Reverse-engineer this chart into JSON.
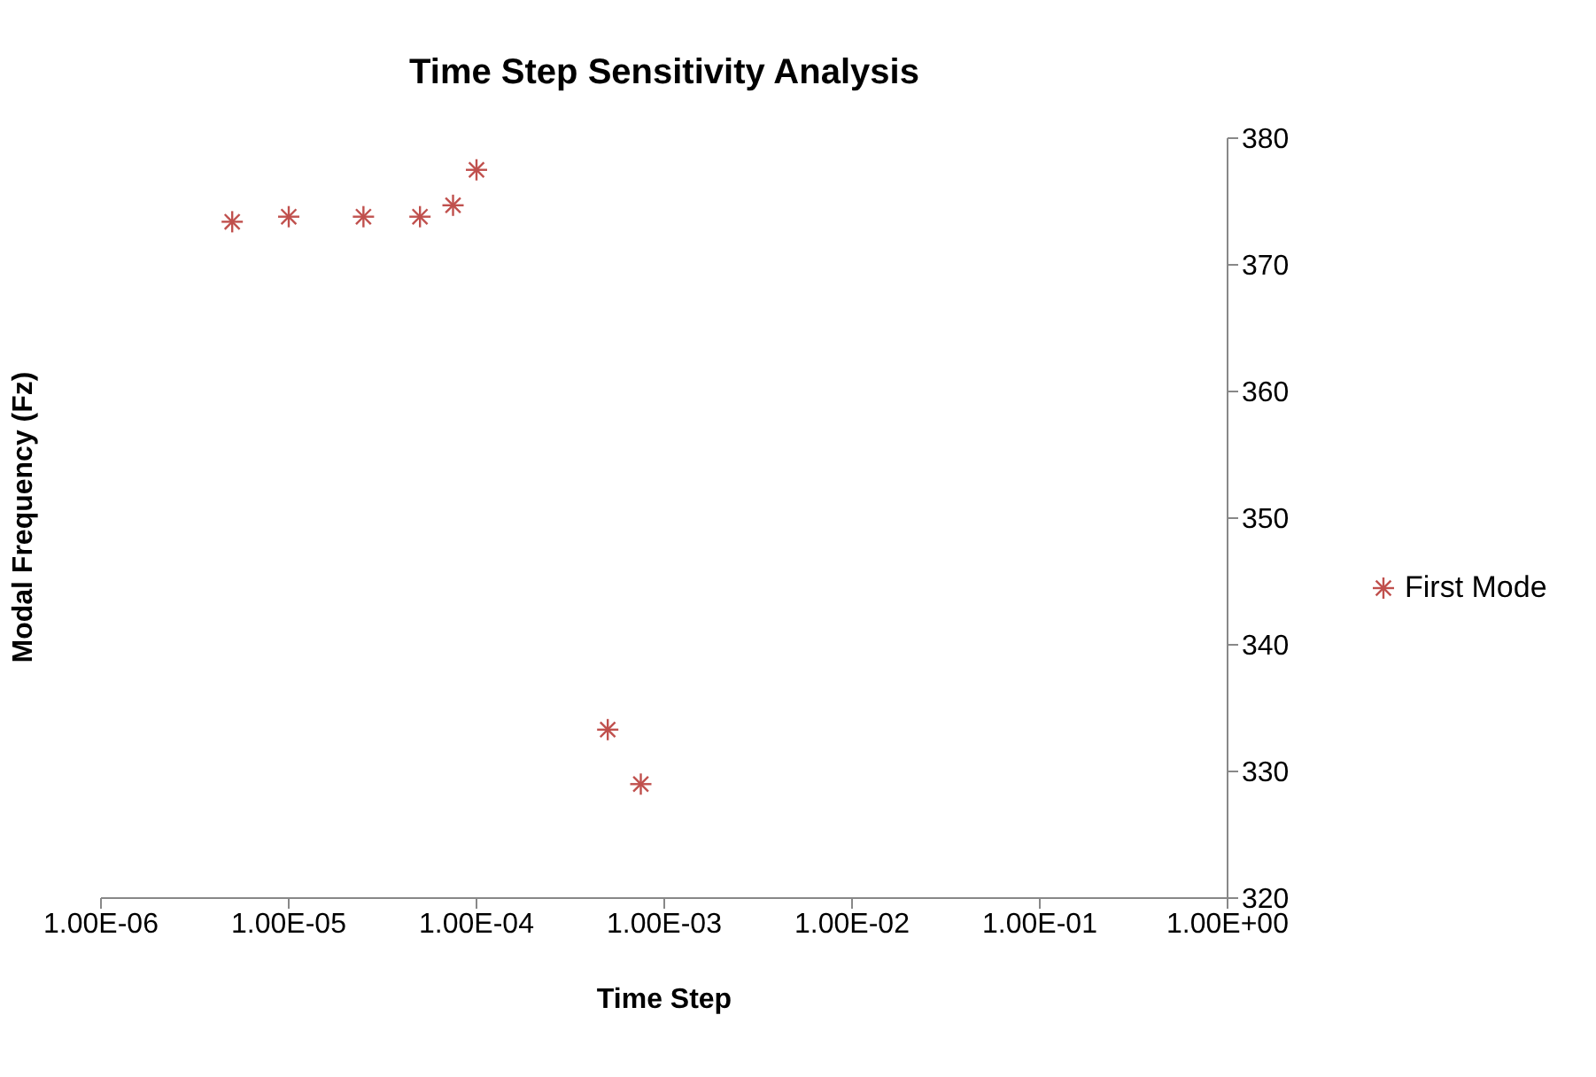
{
  "chart_data": {
    "type": "scatter",
    "title": "Time Step Sensitivity Analysis",
    "xlabel": "Time Step",
    "ylabel": "Modal Frequency (Fz)",
    "log": "x",
    "x": [
      5e-06,
      1e-05,
      2.5e-05,
      5e-05,
      7.5e-05,
      0.0001,
      0.0005,
      0.00075
    ],
    "series": [
      {
        "name": "First Mode",
        "color": "#c0504d",
        "values": [
          373.4,
          373.8,
          373.8,
          373.8,
          374.7,
          377.5,
          333.3,
          329.0
        ]
      }
    ],
    "xlim": [
      1e-06,
      1
    ],
    "xticks": [
      {
        "value": 1e-06,
        "label": "1.00E-06"
      },
      {
        "value": 1e-05,
        "label": "1.00E-05"
      },
      {
        "value": 0.0001,
        "label": "1.00E-04"
      },
      {
        "value": 0.001,
        "label": "1.00E-03"
      },
      {
        "value": 0.01,
        "label": "1.00E-02"
      },
      {
        "value": 0.1,
        "label": "1.00E-01"
      },
      {
        "value": 1,
        "label": "1.00E+00"
      }
    ],
    "ylim": [
      320,
      380
    ],
    "yticks": [
      320,
      330,
      340,
      350,
      360,
      370,
      380
    ],
    "grid": false,
    "legend": "right",
    "marker": "cross"
  }
}
